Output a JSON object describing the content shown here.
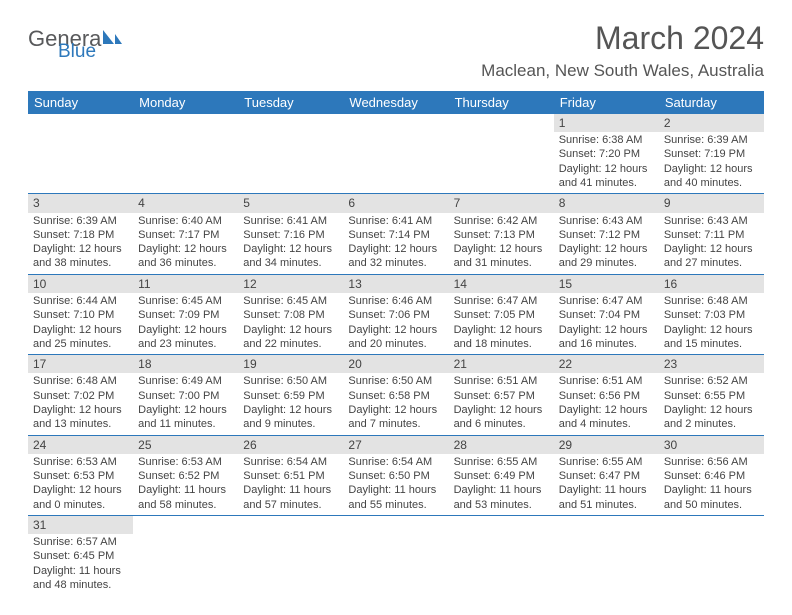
{
  "brand": {
    "word1": "Genera",
    "word2": "Blue"
  },
  "title": "March 2024",
  "location": "Maclean, New South Wales, Australia",
  "colors": {
    "header_bg": "#2d78bb",
    "header_fg": "#ffffff",
    "daynum_bg": "#e3e3e3",
    "cell_border": "#2d78bb",
    "text": "#444444",
    "logo_gray": "#58595b",
    "logo_blue": "#2d78bb"
  },
  "weekdays": [
    "Sunday",
    "Monday",
    "Tuesday",
    "Wednesday",
    "Thursday",
    "Friday",
    "Saturday"
  ],
  "weeks": [
    [
      {
        "empty": true
      },
      {
        "empty": true
      },
      {
        "empty": true
      },
      {
        "empty": true
      },
      {
        "empty": true
      },
      {
        "d": "1",
        "sr": "6:38 AM",
        "ss": "7:20 PM",
        "dl": "12 hours and 41 minutes."
      },
      {
        "d": "2",
        "sr": "6:39 AM",
        "ss": "7:19 PM",
        "dl": "12 hours and 40 minutes."
      }
    ],
    [
      {
        "d": "3",
        "sr": "6:39 AM",
        "ss": "7:18 PM",
        "dl": "12 hours and 38 minutes."
      },
      {
        "d": "4",
        "sr": "6:40 AM",
        "ss": "7:17 PM",
        "dl": "12 hours and 36 minutes."
      },
      {
        "d": "5",
        "sr": "6:41 AM",
        "ss": "7:16 PM",
        "dl": "12 hours and 34 minutes."
      },
      {
        "d": "6",
        "sr": "6:41 AM",
        "ss": "7:14 PM",
        "dl": "12 hours and 32 minutes."
      },
      {
        "d": "7",
        "sr": "6:42 AM",
        "ss": "7:13 PM",
        "dl": "12 hours and 31 minutes."
      },
      {
        "d": "8",
        "sr": "6:43 AM",
        "ss": "7:12 PM",
        "dl": "12 hours and 29 minutes."
      },
      {
        "d": "9",
        "sr": "6:43 AM",
        "ss": "7:11 PM",
        "dl": "12 hours and 27 minutes."
      }
    ],
    [
      {
        "d": "10",
        "sr": "6:44 AM",
        "ss": "7:10 PM",
        "dl": "12 hours and 25 minutes."
      },
      {
        "d": "11",
        "sr": "6:45 AM",
        "ss": "7:09 PM",
        "dl": "12 hours and 23 minutes."
      },
      {
        "d": "12",
        "sr": "6:45 AM",
        "ss": "7:08 PM",
        "dl": "12 hours and 22 minutes."
      },
      {
        "d": "13",
        "sr": "6:46 AM",
        "ss": "7:06 PM",
        "dl": "12 hours and 20 minutes."
      },
      {
        "d": "14",
        "sr": "6:47 AM",
        "ss": "7:05 PM",
        "dl": "12 hours and 18 minutes."
      },
      {
        "d": "15",
        "sr": "6:47 AM",
        "ss": "7:04 PM",
        "dl": "12 hours and 16 minutes."
      },
      {
        "d": "16",
        "sr": "6:48 AM",
        "ss": "7:03 PM",
        "dl": "12 hours and 15 minutes."
      }
    ],
    [
      {
        "d": "17",
        "sr": "6:48 AM",
        "ss": "7:02 PM",
        "dl": "12 hours and 13 minutes."
      },
      {
        "d": "18",
        "sr": "6:49 AM",
        "ss": "7:00 PM",
        "dl": "12 hours and 11 minutes."
      },
      {
        "d": "19",
        "sr": "6:50 AM",
        "ss": "6:59 PM",
        "dl": "12 hours and 9 minutes."
      },
      {
        "d": "20",
        "sr": "6:50 AM",
        "ss": "6:58 PM",
        "dl": "12 hours and 7 minutes."
      },
      {
        "d": "21",
        "sr": "6:51 AM",
        "ss": "6:57 PM",
        "dl": "12 hours and 6 minutes."
      },
      {
        "d": "22",
        "sr": "6:51 AM",
        "ss": "6:56 PM",
        "dl": "12 hours and 4 minutes."
      },
      {
        "d": "23",
        "sr": "6:52 AM",
        "ss": "6:55 PM",
        "dl": "12 hours and 2 minutes."
      }
    ],
    [
      {
        "d": "24",
        "sr": "6:53 AM",
        "ss": "6:53 PM",
        "dl": "12 hours and 0 minutes."
      },
      {
        "d": "25",
        "sr": "6:53 AM",
        "ss": "6:52 PM",
        "dl": "11 hours and 58 minutes."
      },
      {
        "d": "26",
        "sr": "6:54 AM",
        "ss": "6:51 PM",
        "dl": "11 hours and 57 minutes."
      },
      {
        "d": "27",
        "sr": "6:54 AM",
        "ss": "6:50 PM",
        "dl": "11 hours and 55 minutes."
      },
      {
        "d": "28",
        "sr": "6:55 AM",
        "ss": "6:49 PM",
        "dl": "11 hours and 53 minutes."
      },
      {
        "d": "29",
        "sr": "6:55 AM",
        "ss": "6:47 PM",
        "dl": "11 hours and 51 minutes."
      },
      {
        "d": "30",
        "sr": "6:56 AM",
        "ss": "6:46 PM",
        "dl": "11 hours and 50 minutes."
      }
    ],
    [
      {
        "d": "31",
        "sr": "6:57 AM",
        "ss": "6:45 PM",
        "dl": "11 hours and 48 minutes."
      },
      {
        "empty": true
      },
      {
        "empty": true
      },
      {
        "empty": true
      },
      {
        "empty": true
      },
      {
        "empty": true
      },
      {
        "empty": true
      }
    ]
  ],
  "labels": {
    "sunrise": "Sunrise:",
    "sunset": "Sunset:",
    "daylight": "Daylight:"
  }
}
